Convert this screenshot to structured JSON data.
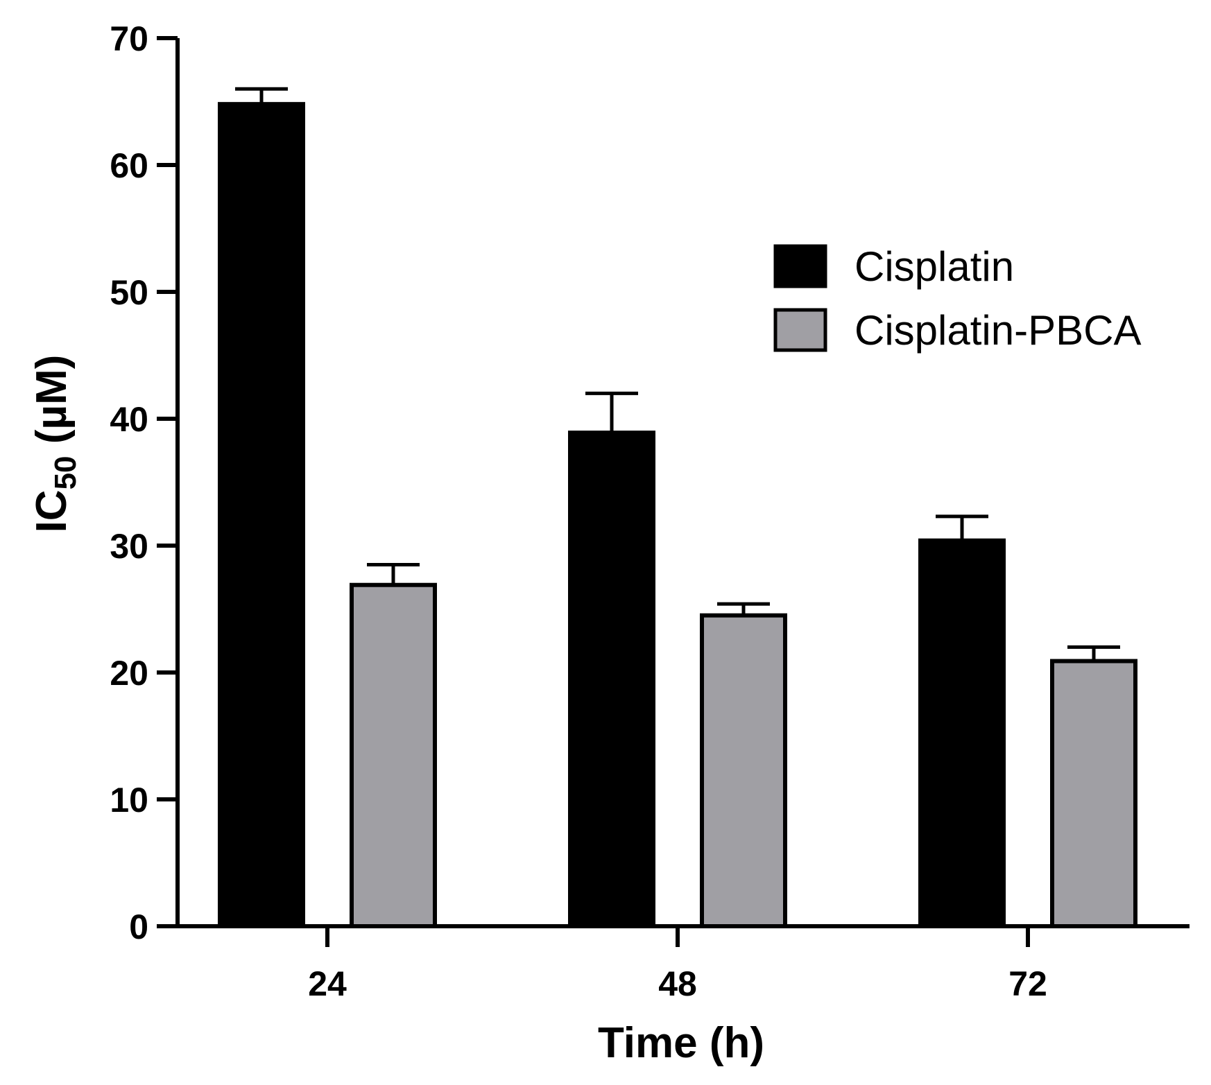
{
  "chart_data": {
    "type": "bar",
    "title": "",
    "xlabel": "Time (h)",
    "ylabel": {
      "main": "IC",
      "subscript": "50",
      "unit": " (µM)"
    },
    "categories": [
      "24",
      "48",
      "72"
    ],
    "ylim": [
      0,
      70
    ],
    "yticks": [
      0,
      10,
      20,
      30,
      40,
      50,
      60,
      70
    ],
    "legend_position": "top-right",
    "error_bars": "upper",
    "series": [
      {
        "name": "Cisplatin",
        "color": "#000000",
        "values": [
          64.8,
          38.9,
          30.4
        ],
        "errors": [
          1.2,
          3.1,
          1.9
        ]
      },
      {
        "name": "Cisplatin-PBCA",
        "color": "#a09fa4",
        "values": [
          26.9,
          24.5,
          20.9
        ],
        "errors": [
          1.6,
          0.9,
          1.1
        ]
      }
    ]
  }
}
